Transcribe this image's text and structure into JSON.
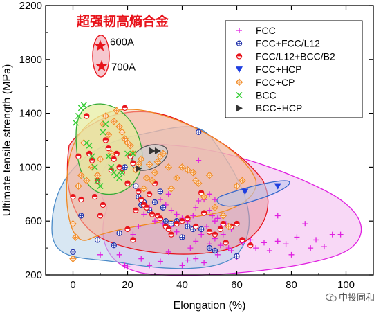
{
  "chart_data": {
    "type": "scatter",
    "xlabel": "Elongation (%)",
    "ylabel": "Ultimate tensile strength (MPa)",
    "xlim": [
      -10,
      110
    ],
    "ylim": [
      200,
      2200
    ],
    "xticks": [
      0,
      20,
      40,
      60,
      80,
      100
    ],
    "yticks": [
      200,
      600,
      1000,
      1400,
      1800,
      2200
    ],
    "legend_position": "top-right",
    "series": [
      {
        "name": "FCC",
        "marker": "plus",
        "color": "#e020e0",
        "points": [
          [
            10,
            350
          ],
          [
            17,
            350
          ],
          [
            19,
            270
          ],
          [
            20,
            260
          ],
          [
            25,
            320
          ],
          [
            28,
            270
          ],
          [
            32,
            300
          ],
          [
            35,
            370
          ],
          [
            40,
            270
          ],
          [
            42,
            310
          ],
          [
            45,
            320
          ],
          [
            48,
            290
          ],
          [
            50,
            430
          ],
          [
            52,
            470
          ],
          [
            53,
            350
          ],
          [
            54,
            420
          ],
          [
            55,
            430
          ],
          [
            57,
            400
          ],
          [
            58,
            380
          ],
          [
            60,
            330
          ],
          [
            62,
            440
          ],
          [
            65,
            460
          ],
          [
            67,
            400
          ],
          [
            70,
            440
          ],
          [
            72,
            380
          ],
          [
            75,
            450
          ],
          [
            78,
            430
          ],
          [
            80,
            350
          ],
          [
            82,
            480
          ],
          [
            85,
            580
          ],
          [
            87,
            400
          ],
          [
            89,
            460
          ],
          [
            92,
            410
          ],
          [
            95,
            500
          ],
          [
            98,
            500
          ],
          [
            22,
            500
          ],
          [
            24,
            560
          ],
          [
            26,
            650
          ],
          [
            28,
            700
          ],
          [
            30,
            740
          ],
          [
            32,
            760
          ],
          [
            34,
            720
          ],
          [
            35,
            800
          ],
          [
            36,
            680
          ],
          [
            38,
            650
          ],
          [
            40,
            620
          ],
          [
            42,
            600
          ],
          [
            44,
            640
          ],
          [
            45,
            700
          ],
          [
            46,
            750
          ],
          [
            48,
            760
          ],
          [
            49,
            560
          ],
          [
            50,
            680
          ],
          [
            51,
            640
          ],
          [
            52,
            600
          ],
          [
            53,
            620
          ],
          [
            54,
            560
          ],
          [
            55,
            500
          ],
          [
            56,
            580
          ],
          [
            58,
            540
          ],
          [
            43,
            400
          ],
          [
            45,
            450
          ],
          [
            47,
            500
          ],
          [
            36,
            560
          ],
          [
            38,
            520
          ],
          [
            40,
            480
          ],
          [
            30,
            600
          ],
          [
            33,
            580
          ],
          [
            46,
            1050
          ],
          [
            50,
            800
          ],
          [
            52,
            760
          ],
          [
            75,
            640
          ]
        ]
      },
      {
        "name": "FCC+FCC/L12",
        "marker": "circle-plus",
        "color": "#2233aa",
        "points": [
          [
            0,
            370
          ],
          [
            3,
            640
          ],
          [
            9,
            460
          ],
          [
            15,
            420
          ],
          [
            17,
            510
          ],
          [
            18,
            980
          ],
          [
            19,
            1000
          ],
          [
            23,
            860
          ],
          [
            24,
            780
          ],
          [
            25,
            720
          ],
          [
            26,
            740
          ],
          [
            28,
            680
          ],
          [
            30,
            740
          ],
          [
            32,
            820
          ],
          [
            33,
            700
          ],
          [
            34,
            600
          ],
          [
            36,
            580
          ],
          [
            38,
            600
          ],
          [
            40,
            480
          ],
          [
            42,
            560
          ],
          [
            44,
            540
          ],
          [
            46,
            1260
          ],
          [
            47,
            540
          ],
          [
            50,
            400
          ],
          [
            52,
            380
          ],
          [
            60,
            340
          ]
        ]
      },
      {
        "name": "FCC/L12+BCC/B2",
        "marker": "half-circle",
        "color": "#e8131b",
        "points": [
          [
            0,
            780
          ],
          [
            2,
            1080
          ],
          [
            3,
            760
          ],
          [
            5,
            1380
          ],
          [
            6,
            1100
          ],
          [
            7,
            1050
          ],
          [
            8,
            780
          ],
          [
            9,
            900
          ],
          [
            10,
            640
          ],
          [
            11,
            720
          ],
          [
            12,
            1200
          ],
          [
            13,
            1140
          ],
          [
            14,
            980
          ],
          [
            15,
            1060
          ],
          [
            16,
            1100
          ],
          [
            17,
            1000
          ],
          [
            18,
            960
          ],
          [
            19,
            1440
          ],
          [
            20,
            880
          ],
          [
            21,
            1080
          ],
          [
            22,
            1030
          ],
          [
            23,
            680
          ],
          [
            24,
            820
          ],
          [
            25,
            760
          ],
          [
            26,
            720
          ],
          [
            27,
            700
          ],
          [
            28,
            800
          ],
          [
            29,
            650
          ],
          [
            30,
            880
          ],
          [
            31,
            640
          ],
          [
            32,
            620
          ],
          [
            34,
            560
          ],
          [
            35,
            540
          ],
          [
            38,
            580
          ],
          [
            40,
            600
          ],
          [
            42,
            620
          ],
          [
            45,
            560
          ],
          [
            48,
            660
          ],
          [
            50,
            520
          ],
          [
            52,
            500
          ],
          [
            54,
            540
          ],
          [
            56,
            440
          ],
          [
            58,
            560
          ],
          [
            60,
            580
          ],
          [
            62,
            460
          ],
          [
            65,
            420
          ],
          [
            47,
            810
          ],
          [
            55,
            580
          ],
          [
            36,
            500
          ],
          [
            20,
            540
          ],
          [
            22,
            460
          ]
        ]
      },
      {
        "name": "FCC+HCP",
        "marker": "triangle-down",
        "color": "#1f3fe0",
        "points": [
          [
            63,
            820
          ],
          [
            75,
            860
          ]
        ]
      },
      {
        "name": "FCC+CP",
        "marker": "diamond-plus",
        "color": "#f08820",
        "points": [
          [
            0,
            320
          ],
          [
            0,
            580
          ],
          [
            1,
            480
          ],
          [
            2,
            860
          ],
          [
            3,
            940
          ],
          [
            4,
            1180
          ],
          [
            5,
            900
          ],
          [
            7,
            1000
          ],
          [
            9,
            940
          ],
          [
            10,
            1060
          ],
          [
            11,
            1320
          ],
          [
            12,
            1380
          ],
          [
            13,
            1240
          ],
          [
            14,
            1100
          ],
          [
            15,
            1340
          ],
          [
            16,
            1420
          ],
          [
            17,
            1300
          ],
          [
            18,
            1260
          ],
          [
            19,
            1210
          ],
          [
            20,
            1180
          ],
          [
            21,
            1160
          ],
          [
            22,
            1100
          ],
          [
            23,
            980
          ],
          [
            24,
            1020
          ],
          [
            25,
            1060
          ],
          [
            26,
            840
          ],
          [
            27,
            920
          ],
          [
            28,
            1020
          ],
          [
            29,
            900
          ],
          [
            30,
            960
          ],
          [
            31,
            1040
          ],
          [
            32,
            1080
          ],
          [
            33,
            1100
          ],
          [
            35,
            1000
          ],
          [
            36,
            840
          ],
          [
            38,
            920
          ],
          [
            40,
            1000
          ],
          [
            42,
            980
          ],
          [
            44,
            960
          ],
          [
            45,
            900
          ],
          [
            46,
            880
          ],
          [
            48,
            780
          ],
          [
            50,
            940
          ],
          [
            52,
            700
          ],
          [
            55,
            640
          ],
          [
            57,
            560
          ],
          [
            60,
            860
          ],
          [
            62,
            900
          ]
        ]
      },
      {
        "name": "BCC",
        "marker": "x",
        "color": "#33cc33",
        "points": [
          [
            1,
            1330
          ],
          [
            2,
            1380
          ],
          [
            3,
            1440
          ],
          [
            4,
            1460
          ],
          [
            5,
            1180
          ],
          [
            6,
            1160
          ],
          [
            7,
            1080
          ],
          [
            8,
            1000
          ],
          [
            9,
            900
          ],
          [
            10,
            860
          ],
          [
            11,
            1260
          ],
          [
            12,
            1320
          ],
          [
            13,
            1080
          ],
          [
            14,
            1000
          ],
          [
            15,
            960
          ],
          [
            16,
            940
          ],
          [
            17,
            920
          ],
          [
            18,
            960
          ],
          [
            20,
            1100
          ],
          [
            22,
            1100
          ]
        ]
      },
      {
        "name": "BCC+HCP",
        "marker": "triangle-right",
        "color": "#333333",
        "points": [
          [
            24,
            990
          ],
          [
            29,
            1120
          ],
          [
            31,
            1120
          ]
        ]
      }
    ],
    "highlight": {
      "title": "超强韧高熵合金",
      "color": "#e8131b",
      "points": [
        {
          "label": "600A",
          "x": 10,
          "y": 1900
        },
        {
          "label": "700A",
          "x": 10.5,
          "y": 1750
        }
      ]
    },
    "regions": [
      {
        "color": "#e020e0",
        "fill": "#f2b8ee"
      },
      {
        "color": "#4a8ac8",
        "fill": "#b8d3ea"
      },
      {
        "color": "#e8131b",
        "fill": "#e89aa0"
      },
      {
        "color": "#f08820",
        "fill": "#f7c9a6"
      },
      {
        "color": "#33aa33",
        "fill": "#e6ec9c"
      },
      {
        "color": "#555555",
        "fill": "#d0d0d0"
      },
      {
        "color": "#3366cc",
        "fill": "#b8c6ee"
      }
    ]
  },
  "watermark": {
    "text": "中投同和"
  }
}
